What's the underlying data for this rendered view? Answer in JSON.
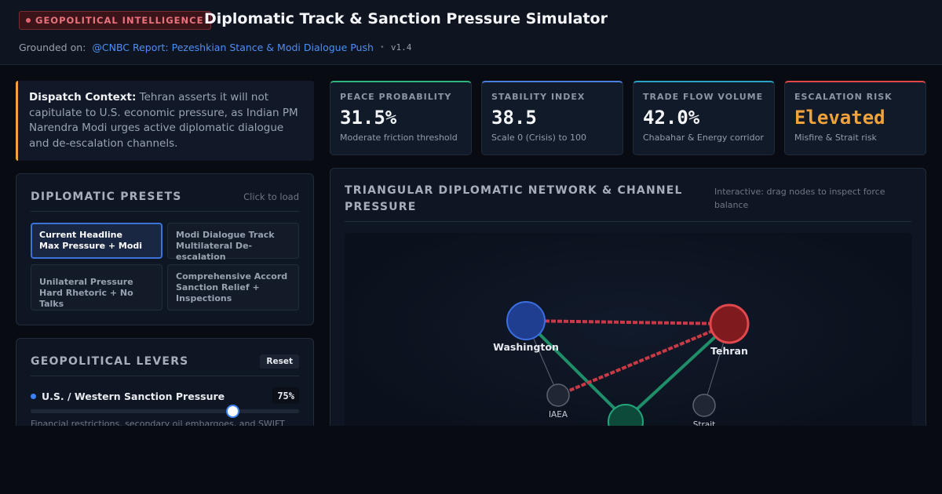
{
  "header": {
    "tag": "GEOPOLITICAL INTELLIGENCE",
    "title": "Diplomatic Track & Sanction Pressure Simulator",
    "grounded_label": "Grounded on:",
    "source_link": "@CNBC Report: Pezeshkian Stance & Modi Dialogue Push",
    "separator": "•",
    "version": "v1.4"
  },
  "dispatch": {
    "label": "Dispatch Context:",
    "text": " Tehran asserts it will not capitulate to U.S. economic pressure, as Indian PM Narendra Modi urges active diplomatic dialogue and de-escalation channels."
  },
  "presets": {
    "title": "DIPLOMATIC PRESETS",
    "hint": "Click to load",
    "items": [
      {
        "line1": "Current Headline",
        "line2": "Max Pressure + Modi",
        "line3": "",
        "active": true
      },
      {
        "line1": "Modi Dialogue Track",
        "line2": "Multilateral De-escalation",
        "line3": "",
        "active": false
      },
      {
        "line1": "Unilateral Pressure",
        "line2": "Hard Rhetoric + No Talks",
        "line3": "",
        "active": false
      },
      {
        "line1": "Comprehensive Accord",
        "line2": "Sanction Relief +",
        "line3": "Inspections",
        "active": false
      }
    ]
  },
  "levers": {
    "title": "GEOPOLITICAL LEVERS",
    "reset_label": "Reset",
    "items": [
      {
        "label": "U.S. / Western Sanction Pressure",
        "value_text": "75%",
        "value": 0.75,
        "description": "Financial restrictions, secondary oil embargoes, and SWIFT"
      }
    ]
  },
  "metrics": [
    {
      "label": "PEACE PROBABILITY",
      "value": "31.5%",
      "sub": "Moderate friction threshold",
      "accent": "#2fb57e",
      "value_color": "#f3f5f8"
    },
    {
      "label": "STABILITY INDEX",
      "value": "38.5",
      "sub": "Scale 0 (Crisis) to 100",
      "accent": "#4a7fe0",
      "value_color": "#f3f5f8"
    },
    {
      "label": "TRADE FLOW VOLUME",
      "value": "42.0%",
      "sub": "Chabahar & Energy corridor",
      "accent": "#2ba3c4",
      "value_color": "#f3f5f8"
    },
    {
      "label": "ESCALATION RISK",
      "value": "Elevated",
      "sub": "Misfire & Strait risk",
      "accent": "#e04848",
      "value_color": "#f0a33a"
    }
  ],
  "network": {
    "title": "TRIANGULAR DIPLOMATIC NETWORK & CHANNEL PRESSURE",
    "hint": "Interactive: drag nodes to inspect force balance",
    "nodes": {
      "washington": {
        "label": "Washington",
        "color": "#1f3e8f",
        "stroke": "#3b6fe0"
      },
      "tehran": {
        "label": "Tehran",
        "color": "#7f1b1f",
        "stroke": "#e0484e"
      },
      "india": {
        "label": "",
        "color": "#0d4a3a",
        "stroke": "#23a57a"
      },
      "iaea": {
        "label": "IAEA"
      },
      "strait": {
        "label": "Strait"
      }
    },
    "colors": {
      "pressure": "#c83a45",
      "dialogue": "#1f8f6a",
      "tether": "#5c6472"
    }
  }
}
